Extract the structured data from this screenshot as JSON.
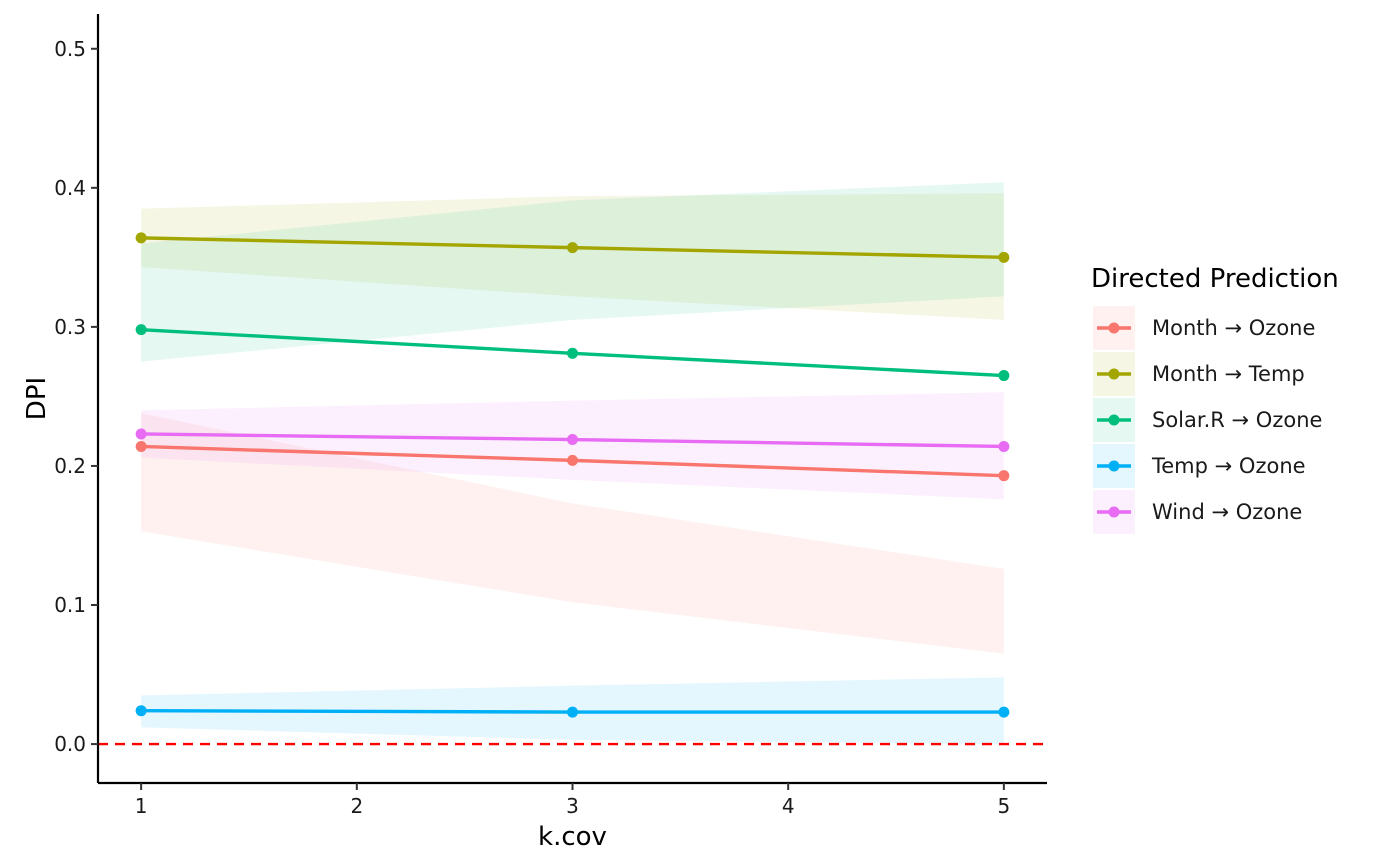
{
  "chart_data": {
    "type": "line",
    "xlabel": "k.cov",
    "ylabel": "DPI",
    "xlim": [
      0.8,
      5.2
    ],
    "ylim": [
      -0.028,
      0.525
    ],
    "x_ticks": [
      "1",
      "2",
      "3",
      "4",
      "5"
    ],
    "y_ticks": [
      "0.0",
      "0.1",
      "0.2",
      "0.3",
      "0.4",
      "0.5"
    ],
    "x": [
      1,
      3,
      5
    ],
    "reference_line": {
      "y": 0,
      "style": "dashed",
      "color": "#FF0000"
    },
    "grid": false,
    "legend": {
      "title": "Directed Prediction",
      "position": "right"
    },
    "series": [
      {
        "name": "Month → Ozone",
        "color": "#F8766D",
        "values": [
          0.214,
          0.204,
          0.193
        ],
        "lower": [
          0.153,
          0.102,
          0.065
        ],
        "upper": [
          0.238,
          0.173,
          0.126
        ]
      },
      {
        "name": "Month → Temp",
        "color": "#A3A500",
        "values": [
          0.364,
          0.357,
          0.35
        ],
        "lower": [
          0.343,
          0.322,
          0.305
        ],
        "upper": [
          0.385,
          0.394,
          0.396
        ]
      },
      {
        "name": "Solar.R → Ozone",
        "color": "#00BF7D",
        "values": [
          0.298,
          0.281,
          0.265
        ],
        "lower": [
          0.275,
          0.305,
          0.322
        ],
        "upper": [
          0.36,
          0.391,
          0.404
        ]
      },
      {
        "name": "Temp → Ozone",
        "color": "#00B0F6",
        "values": [
          0.024,
          0.023,
          0.023
        ],
        "lower": [
          0.012,
          0.003,
          0.0
        ],
        "upper": [
          0.035,
          0.042,
          0.048
        ]
      },
      {
        "name": "Wind → Ozone",
        "color": "#E76BF3",
        "values": [
          0.223,
          0.219,
          0.214
        ],
        "lower": [
          0.206,
          0.19,
          0.176
        ],
        "upper": [
          0.24,
          0.247,
          0.253
        ]
      }
    ]
  }
}
